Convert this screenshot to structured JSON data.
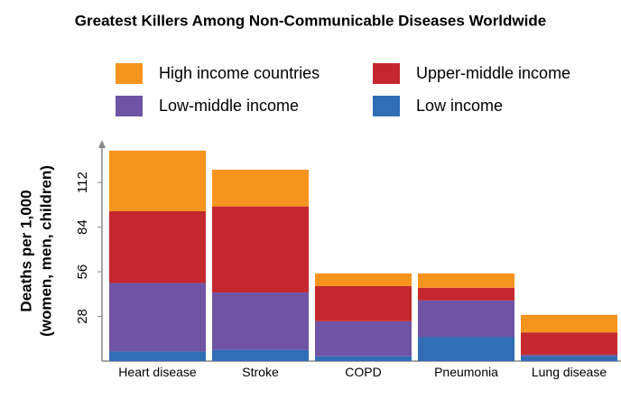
{
  "chart_data": {
    "type": "stacked-bar",
    "title": "Greatest Killers Among Non-Communicable Diseases Worldwide",
    "ylabel": [
      "Deaths per 1,000",
      "(women, men, children)"
    ],
    "categories": [
      "Heart disease",
      "Stroke",
      "COPD",
      "Pneumonia",
      "Lung disease"
    ],
    "series": [
      {
        "name": "Low income",
        "color": "#2f6db5",
        "values": [
          6,
          7,
          3,
          15,
          3
        ]
      },
      {
        "name": "Low-middle income",
        "color": "#6f54a5",
        "values": [
          43,
          36,
          22,
          23,
          1
        ]
      },
      {
        "name": "Upper-middle income",
        "color": "#c4282e",
        "values": [
          45,
          54,
          22,
          8,
          14
        ]
      },
      {
        "name": "High income countries",
        "color": "#f7941d",
        "values": [
          38,
          23,
          8,
          9,
          11
        ]
      }
    ],
    "ylim": [
      0,
      137
    ],
    "yticks": [
      28,
      56,
      84,
      112
    ]
  }
}
